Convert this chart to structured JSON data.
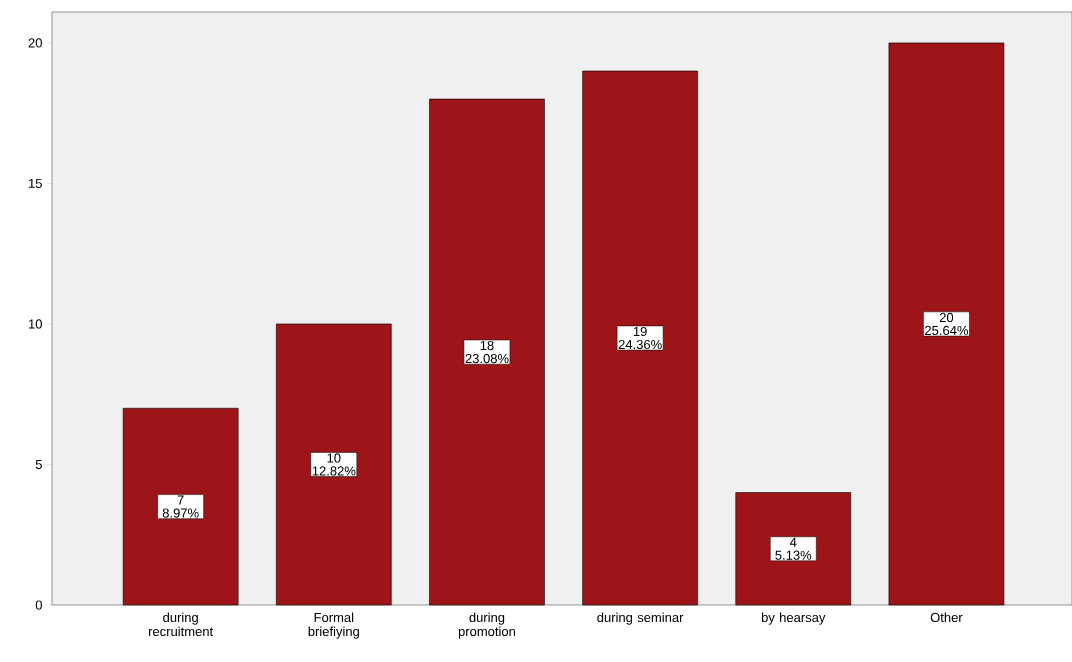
{
  "chart_data": {
    "type": "bar",
    "categories": [
      "during recruitment",
      "Formal briefiying",
      "during promotion",
      "during seminar",
      "by hearsay",
      "Other"
    ],
    "values": [
      7,
      10,
      18,
      19,
      4,
      20
    ],
    "value_labels": [
      "7 8.97%",
      "10 12.82%",
      "18 23.08%",
      "19 24.36%",
      "4 5.13%",
      "20 25.64%"
    ],
    "color": "#9e1519",
    "ylim": [
      0,
      21.1
    ],
    "yticks": [
      0,
      5,
      10,
      15,
      20
    ],
    "grid": false
  }
}
